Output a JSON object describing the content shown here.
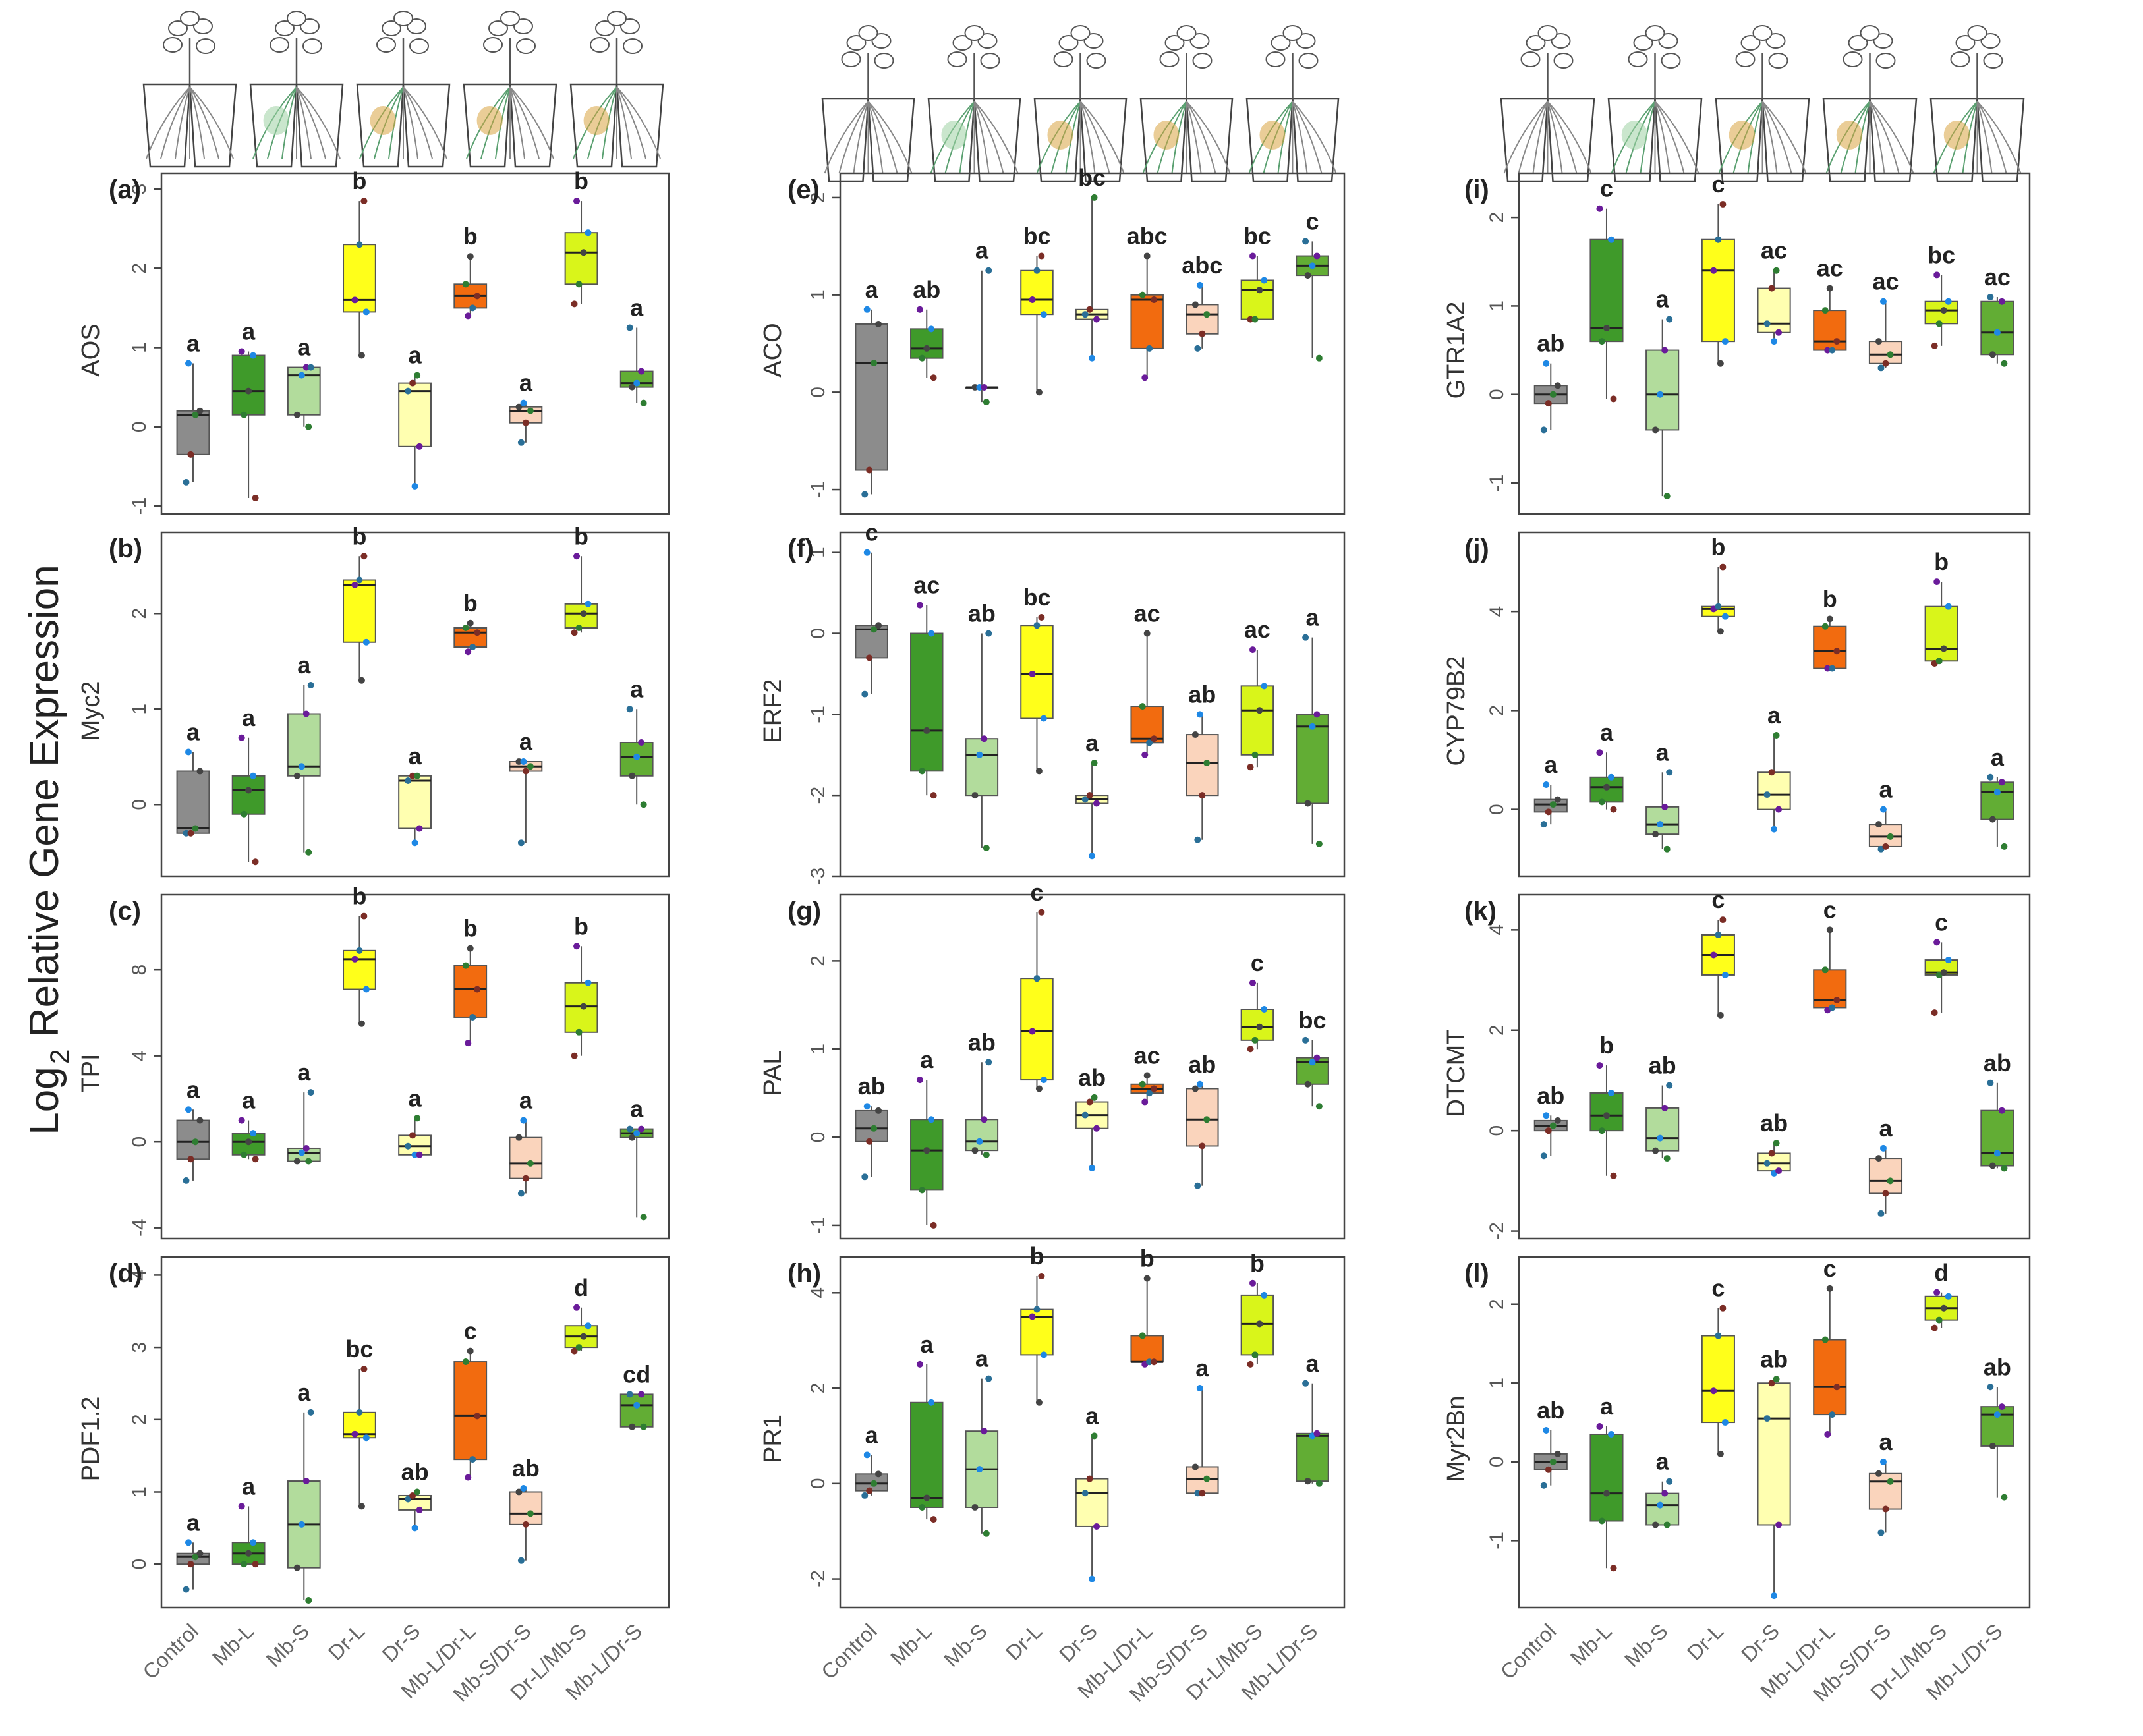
{
  "figure": {
    "y_title_prefix": "Log",
    "y_title_sub": "2",
    "y_title_suffix": "Relative Gene Expression"
  },
  "colors": {
    "Control": "#8c8c8c",
    "Mb-L": "#3f9a2a",
    "Mb-S": "#b2dc9c",
    "Dr-L": "#ffff1a",
    "Dr-S": "#ffffb0",
    "Mb-L/Dr-L": "#f26b0f",
    "Mb-S/Dr-S": "#fad4bc",
    "Dr-L/Mb-S": "#d9f51a",
    "Mb-L/Dr-S": "#62ad34"
  },
  "pots": [
    "Control",
    "Mb-L",
    "Mb-S",
    "Dr-L",
    "Dr-S",
    "Mb-L/Dr-L",
    "Mb-S/Dr-S",
    "Dr-L/Mb-S",
    "Mb-L/Dr-S"
  ],
  "chart_data": [
    {
      "type": "box",
      "panel": "(a)",
      "ylabel": "AOS",
      "ylim": [
        -1.1,
        3.2
      ],
      "yticks": [
        -1,
        0,
        1,
        2,
        3
      ],
      "categories": [
        "Control",
        "Mb-L",
        "Mb-S",
        "Dr-L",
        "Dr-S",
        "Mb-L/Dr-L",
        "Mb-S/Dr-S",
        "Dr-L/Mb-S",
        "Mb-L/Dr-S"
      ],
      "boxes": [
        [
          -0.7,
          -0.35,
          0.15,
          0.2,
          0.8
        ],
        [
          -0.9,
          0.15,
          0.45,
          0.9,
          0.95
        ],
        [
          0.0,
          0.15,
          0.65,
          0.75,
          0.75
        ],
        [
          0.9,
          1.45,
          1.6,
          2.3,
          2.85
        ],
        [
          -0.75,
          -0.25,
          0.45,
          0.55,
          0.65
        ],
        [
          1.4,
          1.5,
          1.65,
          1.8,
          2.15
        ],
        [
          -0.2,
          0.05,
          0.2,
          0.25,
          0.3
        ],
        [
          1.55,
          1.8,
          2.2,
          2.45,
          2.85
        ],
        [
          0.3,
          0.5,
          0.55,
          0.7,
          1.25
        ]
      ],
      "sig": [
        "a",
        "a",
        "a",
        "b",
        "a",
        "b",
        "a",
        "b",
        "a"
      ]
    },
    {
      "type": "box",
      "panel": "(b)",
      "ylabel": "Myc2",
      "ylim": [
        -0.75,
        2.85
      ],
      "yticks": [
        0,
        1,
        2
      ],
      "categories": [
        "Control",
        "Mb-L",
        "Mb-S",
        "Dr-L",
        "Dr-S",
        "Mb-L/Dr-L",
        "Mb-S/Dr-S",
        "Dr-L/Mb-S",
        "Mb-L/Dr-S"
      ],
      "boxes": [
        [
          -0.3,
          -0.3,
          -0.25,
          0.35,
          0.55
        ],
        [
          -0.6,
          -0.1,
          0.15,
          0.3,
          0.7
        ],
        [
          -0.5,
          0.3,
          0.4,
          0.95,
          1.25
        ],
        [
          1.3,
          1.7,
          2.3,
          2.35,
          2.6
        ],
        [
          -0.4,
          -0.25,
          0.25,
          0.3,
          0.3
        ],
        [
          1.6,
          1.65,
          1.8,
          1.85,
          1.9
        ],
        [
          -0.4,
          0.35,
          0.4,
          0.45,
          0.45
        ],
        [
          1.8,
          1.85,
          2.0,
          2.1,
          2.6
        ],
        [
          0.0,
          0.3,
          0.5,
          0.65,
          1.0
        ]
      ],
      "sig": [
        "a",
        "a",
        "a",
        "b",
        "a",
        "b",
        "a",
        "b",
        "a"
      ]
    },
    {
      "type": "box",
      "panel": "(c)",
      "ylabel": "TPI",
      "ylim": [
        -4.5,
        11.5
      ],
      "yticks": [
        -4,
        0,
        4,
        8
      ],
      "categories": [
        "Control",
        "Mb-L",
        "Mb-S",
        "Dr-L",
        "Dr-S",
        "Mb-L/Dr-L",
        "Mb-S/Dr-S",
        "Dr-L/Mb-S",
        "Mb-L/Dr-S"
      ],
      "boxes": [
        [
          -1.8,
          -0.8,
          0.0,
          1.0,
          1.5
        ],
        [
          -0.8,
          -0.6,
          0.0,
          0.4,
          1.0
        ],
        [
          -0.9,
          -0.9,
          -0.5,
          -0.3,
          2.3
        ],
        [
          5.5,
          7.1,
          8.5,
          8.9,
          10.5
        ],
        [
          -0.6,
          -0.6,
          -0.2,
          0.3,
          1.1
        ],
        [
          4.6,
          5.8,
          7.1,
          8.2,
          9.0
        ],
        [
          -2.4,
          -1.7,
          -1.0,
          0.2,
          1.0
        ],
        [
          4.0,
          5.1,
          6.3,
          7.4,
          9.1
        ],
        [
          -3.5,
          0.2,
          0.4,
          0.6,
          0.6
        ]
      ],
      "sig": [
        "a",
        "a",
        "a",
        "b",
        "a",
        "b",
        "a",
        "b",
        "a"
      ]
    },
    {
      "type": "box",
      "panel": "(d)",
      "ylabel": "PDF1.2",
      "ylim": [
        -0.6,
        4.25
      ],
      "yticks": [
        0,
        1,
        2,
        3,
        4
      ],
      "categories": [
        "Control",
        "Mb-L",
        "Mb-S",
        "Dr-L",
        "Dr-S",
        "Mb-L/Dr-L",
        "Mb-S/Dr-S",
        "Dr-L/Mb-S",
        "Mb-L/Dr-S"
      ],
      "boxes": [
        [
          -0.35,
          0.0,
          0.1,
          0.15,
          0.3
        ],
        [
          0.0,
          0.0,
          0.15,
          0.3,
          0.8
        ],
        [
          -0.5,
          -0.05,
          0.55,
          1.15,
          2.1
        ],
        [
          0.8,
          1.75,
          1.8,
          2.1,
          2.7
        ],
        [
          0.5,
          0.75,
          0.9,
          0.95,
          1.0
        ],
        [
          1.2,
          1.45,
          2.05,
          2.8,
          2.95
        ],
        [
          0.05,
          0.55,
          0.7,
          1.0,
          1.05
        ],
        [
          2.95,
          3.0,
          3.15,
          3.3,
          3.55
        ],
        [
          1.9,
          1.9,
          2.2,
          2.35,
          2.35
        ]
      ],
      "sig": [
        "a",
        "a",
        "a",
        "bc",
        "ab",
        "c",
        "ab",
        "d",
        "cd"
      ]
    },
    {
      "type": "box",
      "panel": "(e)",
      "ylabel": "ACO",
      "ylim": [
        -1.25,
        2.25
      ],
      "yticks": [
        -1,
        0,
        1,
        2
      ],
      "categories": [
        "Control",
        "Mb-L",
        "Mb-S",
        "Dr-L",
        "Dr-S",
        "Mb-L/Dr-L",
        "Mb-S/Dr-S",
        "Dr-L/Mb-S",
        "Mb-L/Dr-S"
      ],
      "boxes": [
        [
          -1.05,
          -0.8,
          0.3,
          0.7,
          0.85
        ],
        [
          0.15,
          0.35,
          0.45,
          0.65,
          0.85
        ],
        [
          -0.1,
          0.05,
          0.05,
          0.05,
          1.25
        ],
        [
          0.0,
          0.8,
          0.95,
          1.25,
          1.4
        ],
        [
          0.35,
          0.75,
          0.8,
          0.85,
          2.0
        ],
        [
          0.15,
          0.45,
          0.95,
          1.0,
          1.4
        ],
        [
          0.45,
          0.6,
          0.8,
          0.9,
          1.1
        ],
        [
          0.75,
          0.75,
          1.05,
          1.15,
          1.4
        ],
        [
          0.35,
          1.2,
          1.3,
          1.4,
          1.55
        ]
      ],
      "sig": [
        "a",
        "ab",
        "a",
        "bc",
        "bc",
        "abc",
        "abc",
        "bc",
        "c"
      ]
    },
    {
      "type": "box",
      "panel": "(f)",
      "ylabel": "ERF2",
      "ylim": [
        -3.0,
        1.25
      ],
      "yticks": [
        -3,
        -2,
        -1,
        0,
        1
      ],
      "categories": [
        "Control",
        "Mb-L",
        "Mb-S",
        "Dr-L",
        "Dr-S",
        "Mb-L/Dr-L",
        "Mb-S/Dr-S",
        "Dr-L/Mb-S",
        "Mb-L/Dr-S"
      ],
      "boxes": [
        [
          -0.75,
          -0.3,
          0.05,
          0.1,
          1.0
        ],
        [
          -2.0,
          -1.7,
          -1.2,
          0.0,
          0.35
        ],
        [
          -2.65,
          -2.0,
          -1.5,
          -1.3,
          0.0
        ],
        [
          -1.7,
          -1.05,
          -0.5,
          0.1,
          0.2
        ],
        [
          -2.75,
          -2.1,
          -2.05,
          -2.0,
          -1.6
        ],
        [
          -1.5,
          -1.35,
          -1.3,
          -0.9,
          0.0
        ],
        [
          -2.55,
          -2.0,
          -1.6,
          -1.25,
          -1.0
        ],
        [
          -1.65,
          -1.5,
          -0.95,
          -0.65,
          -0.2
        ],
        [
          -2.6,
          -2.1,
          -1.15,
          -1.0,
          -0.05
        ]
      ],
      "sig": [
        "c",
        "ac",
        "ab",
        "bc",
        "a",
        "ac",
        "ab",
        "ac",
        "a"
      ]
    },
    {
      "type": "box",
      "panel": "(g)",
      "ylabel": "PAL",
      "ylim": [
        -1.15,
        2.75
      ],
      "yticks": [
        -1,
        0,
        1,
        2
      ],
      "categories": [
        "Control",
        "Mb-L",
        "Mb-S",
        "Dr-L",
        "Dr-S",
        "Mb-L/Dr-L",
        "Mb-S/Dr-S",
        "Dr-L/Mb-S",
        "Mb-L/Dr-S"
      ],
      "boxes": [
        [
          -0.45,
          -0.05,
          0.1,
          0.3,
          0.35
        ],
        [
          -1.0,
          -0.6,
          -0.15,
          0.2,
          0.65
        ],
        [
          -0.2,
          -0.15,
          -0.05,
          0.2,
          0.85
        ],
        [
          0.55,
          0.65,
          1.2,
          1.8,
          2.55
        ],
        [
          -0.35,
          0.1,
          0.25,
          0.4,
          0.45
        ],
        [
          0.4,
          0.5,
          0.55,
          0.6,
          0.7
        ],
        [
          -0.55,
          -0.1,
          0.2,
          0.55,
          0.6
        ],
        [
          1.0,
          1.1,
          1.25,
          1.45,
          1.75
        ],
        [
          0.35,
          0.6,
          0.85,
          0.9,
          1.1
        ]
      ],
      "sig": [
        "ab",
        "a",
        "ab",
        "c",
        "ab",
        "ac",
        "ab",
        "c",
        "bc"
      ]
    },
    {
      "type": "box",
      "panel": "(h)",
      "ylabel": "PR1",
      "ylim": [
        -2.6,
        4.75
      ],
      "yticks": [
        -2,
        0,
        2,
        4
      ],
      "categories": [
        "Control",
        "Mb-L",
        "Mb-S",
        "Dr-L",
        "Dr-S",
        "Mb-L/Dr-L",
        "Mb-S/Dr-S",
        "Dr-L/Mb-S",
        "Mb-L/Dr-S"
      ],
      "boxes": [
        [
          -0.25,
          -0.15,
          0.0,
          0.2,
          0.6
        ],
        [
          -0.75,
          -0.5,
          -0.3,
          1.7,
          2.5
        ],
        [
          -1.05,
          -0.5,
          0.3,
          1.1,
          2.2
        ],
        [
          1.7,
          2.7,
          3.5,
          3.65,
          4.35
        ],
        [
          -2.0,
          -0.9,
          -0.2,
          0.1,
          1.0
        ],
        [
          2.5,
          2.55,
          2.55,
          3.1,
          4.3
        ],
        [
          -0.2,
          -0.2,
          0.1,
          0.35,
          2.0
        ],
        [
          2.5,
          2.7,
          3.35,
          3.95,
          4.2
        ],
        [
          0.0,
          0.05,
          1.0,
          1.05,
          2.1
        ]
      ],
      "sig": [
        "a",
        "a",
        "a",
        "b",
        "a",
        "b",
        "a",
        "b",
        "a"
      ]
    },
    {
      "type": "box",
      "panel": "(i)",
      "ylabel": "GTR1A2",
      "ylim": [
        -1.35,
        2.5
      ],
      "yticks": [
        -1,
        0,
        1,
        2
      ],
      "categories": [
        "Control",
        "Mb-L",
        "Mb-S",
        "Dr-L",
        "Dr-S",
        "Mb-L/Dr-L",
        "Mb-S/Dr-S",
        "Dr-L/Mb-S",
        "Mb-L/Dr-S"
      ],
      "boxes": [
        [
          -0.4,
          -0.1,
          0.0,
          0.1,
          0.35
        ],
        [
          -0.05,
          0.6,
          0.75,
          1.75,
          2.1
        ],
        [
          -1.15,
          -0.4,
          0.0,
          0.5,
          0.85
        ],
        [
          0.35,
          0.6,
          1.4,
          1.75,
          2.15
        ],
        [
          0.6,
          0.7,
          0.8,
          1.2,
          1.4
        ],
        [
          0.5,
          0.5,
          0.6,
          0.95,
          1.2
        ],
        [
          0.3,
          0.35,
          0.45,
          0.6,
          1.05
        ],
        [
          0.55,
          0.8,
          0.95,
          1.05,
          1.35
        ],
        [
          0.35,
          0.45,
          0.7,
          1.05,
          1.1
        ]
      ],
      "sig": [
        "ab",
        "c",
        "a",
        "c",
        "ac",
        "ac",
        "ac",
        "bc",
        "ac"
      ]
    },
    {
      "type": "box",
      "panel": "(j)",
      "ylabel": "CYP79B2",
      "ylim": [
        -1.35,
        5.6
      ],
      "yticks": [
        0,
        2,
        4
      ],
      "categories": [
        "Control",
        "Mb-L",
        "Mb-S",
        "Dr-L",
        "Dr-S",
        "Mb-L/Dr-L",
        "Mb-S/Dr-S",
        "Dr-L/Mb-S",
        "Mb-L/Dr-S"
      ],
      "boxes": [
        [
          -0.3,
          -0.05,
          0.1,
          0.2,
          0.5
        ],
        [
          0.0,
          0.15,
          0.45,
          0.65,
          1.15
        ],
        [
          -0.8,
          -0.5,
          -0.3,
          0.05,
          0.75
        ],
        [
          3.6,
          3.9,
          4.05,
          4.1,
          4.9
        ],
        [
          -0.4,
          0.0,
          0.3,
          0.75,
          1.5
        ],
        [
          2.85,
          2.85,
          3.2,
          3.7,
          3.85
        ],
        [
          -0.8,
          -0.75,
          -0.55,
          -0.3,
          0.0
        ],
        [
          2.95,
          3.0,
          3.25,
          4.1,
          4.6
        ],
        [
          -0.75,
          -0.2,
          0.35,
          0.55,
          0.65
        ]
      ],
      "sig": [
        "a",
        "a",
        "a",
        "b",
        "a",
        "b",
        "a",
        "b",
        "a"
      ]
    },
    {
      "type": "box",
      "panel": "(k)",
      "ylabel": "DTCMT",
      "ylim": [
        -2.15,
        4.7
      ],
      "yticks": [
        -2,
        0,
        2,
        4
      ],
      "categories": [
        "Control",
        "Mb-L",
        "Mb-S",
        "Dr-L",
        "Dr-S",
        "Mb-L/Dr-L",
        "Mb-S/Dr-S",
        "Dr-L/Mb-S",
        "Mb-L/Dr-S"
      ],
      "boxes": [
        [
          -0.5,
          0.0,
          0.1,
          0.2,
          0.3
        ],
        [
          -0.9,
          0.0,
          0.3,
          0.75,
          1.3
        ],
        [
          -0.55,
          -0.4,
          -0.15,
          0.45,
          0.9
        ],
        [
          2.3,
          3.1,
          3.5,
          3.9,
          4.2
        ],
        [
          -0.85,
          -0.8,
          -0.65,
          -0.45,
          -0.25
        ],
        [
          2.4,
          2.45,
          2.6,
          3.2,
          4.0
        ],
        [
          -1.65,
          -1.25,
          -1.0,
          -0.55,
          -0.35
        ],
        [
          2.35,
          3.1,
          3.15,
          3.4,
          3.75
        ],
        [
          -0.75,
          -0.7,
          -0.45,
          0.4,
          0.95
        ]
      ],
      "sig": [
        "ab",
        "b",
        "ab",
        "c",
        "ab",
        "c",
        "a",
        "c",
        "ab"
      ]
    },
    {
      "type": "box",
      "panel": "(l)",
      "ylabel": "Myr2Bn",
      "ylim": [
        -1.85,
        2.6
      ],
      "yticks": [
        -1,
        0,
        1,
        2
      ],
      "categories": [
        "Control",
        "Mb-L",
        "Mb-S",
        "Dr-L",
        "Dr-S",
        "Mb-L/Dr-L",
        "Mb-S/Dr-S",
        "Dr-L/Mb-S",
        "Mb-L/Dr-S"
      ],
      "boxes": [
        [
          -0.3,
          -0.1,
          0.0,
          0.1,
          0.4
        ],
        [
          -1.35,
          -0.75,
          -0.4,
          0.35,
          0.45
        ],
        [
          -0.8,
          -0.8,
          -0.55,
          -0.4,
          -0.25
        ],
        [
          0.1,
          0.5,
          0.9,
          1.6,
          1.95
        ],
        [
          -1.7,
          -0.8,
          0.55,
          1.0,
          1.05
        ],
        [
          0.35,
          0.6,
          0.95,
          1.55,
          2.2
        ],
        [
          -0.9,
          -0.6,
          -0.25,
          -0.15,
          0.0
        ],
        [
          1.7,
          1.8,
          1.95,
          2.1,
          2.15
        ],
        [
          -0.45,
          0.2,
          0.6,
          0.7,
          0.95
        ]
      ],
      "sig": [
        "ab",
        "a",
        "a",
        "c",
        "ab",
        "c",
        "a",
        "d",
        "ab"
      ]
    }
  ]
}
